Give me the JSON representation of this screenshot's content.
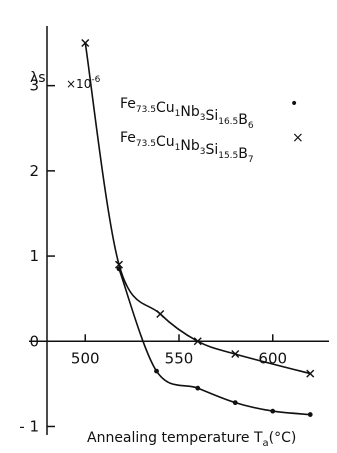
{
  "chart_data": {
    "type": "scatter",
    "title": "",
    "ylabel": "λs",
    "y_multiplier": "×10",
    "y_multiplier_exp": "-6",
    "xlabel": "Annealing temperature T",
    "xlabel_sub": "a",
    "xlabel_unit": "(°C)",
    "xlim": [
      470,
      630
    ],
    "ylim": [
      -1.1,
      3.7
    ],
    "x_ticks": [
      500,
      550,
      600
    ],
    "y_ticks": [
      -1,
      0,
      1,
      2,
      3
    ],
    "grid": false,
    "legend_position": "top-right",
    "series": [
      {
        "key": "B6",
        "marker": "dot",
        "legend_marker": "•",
        "formula": [
          {
            "t": "Fe",
            "s": "73.5"
          },
          {
            "t": "Cu",
            "s": "1"
          },
          {
            "t": "Nb",
            "s": "3"
          },
          {
            "t": "Si",
            "s": "16.5"
          },
          {
            "t": "B",
            "s": "6"
          }
        ],
        "points": [
          {
            "x": 518,
            "y": 0.85
          },
          {
            "x": 538,
            "y": -0.35
          },
          {
            "x": 560,
            "y": -0.55
          },
          {
            "x": 580,
            "y": -0.72
          },
          {
            "x": 600,
            "y": -0.82
          },
          {
            "x": 620,
            "y": -0.86
          }
        ]
      },
      {
        "key": "B7",
        "marker": "cross",
        "legend_marker": "×",
        "formula": [
          {
            "t": "Fe",
            "s": "73.5"
          },
          {
            "t": "Cu",
            "s": "1"
          },
          {
            "t": "Nb",
            "s": "3"
          },
          {
            "t": "Si",
            "s": "15.5"
          },
          {
            "t": "B",
            "s": "7"
          }
        ],
        "points": [
          {
            "x": 500,
            "y": 3.5
          },
          {
            "x": 518,
            "y": 0.9
          },
          {
            "x": 540,
            "y": 0.32
          },
          {
            "x": 560,
            "y": 0.0
          },
          {
            "x": 580,
            "y": -0.15
          },
          {
            "x": 620,
            "y": -0.38
          }
        ]
      }
    ]
  }
}
